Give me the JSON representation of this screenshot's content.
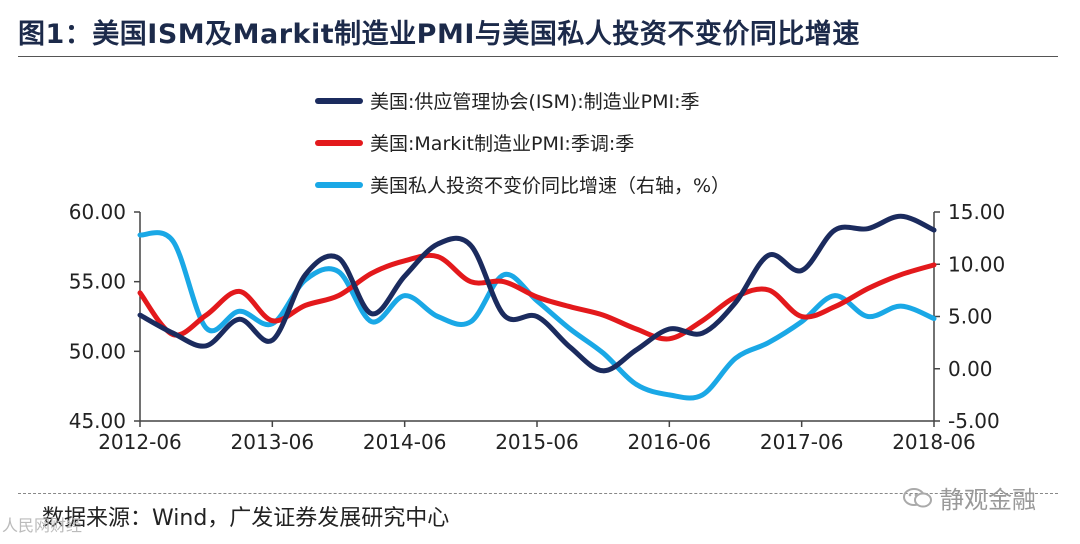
{
  "header": {
    "title": "图1：美国ISM及Markit制造业PMI与美国私人投资不变价同比增速"
  },
  "footer": {
    "source": "数据来源：Wind，广发证券发展研究中心",
    "watermark_right": "静观金融",
    "watermark_left": "人民网财经"
  },
  "chart_data": {
    "type": "line",
    "x": [
      "2012-06",
      "2012-09",
      "2012-12",
      "2013-03",
      "2013-06",
      "2013-09",
      "2013-12",
      "2014-03",
      "2014-06",
      "2014-09",
      "2014-12",
      "2015-03",
      "2015-06",
      "2015-09",
      "2015-12",
      "2016-03",
      "2016-06",
      "2016-09",
      "2016-12",
      "2017-03",
      "2017-06",
      "2017-09",
      "2017-12",
      "2018-03",
      "2018-06"
    ],
    "x_ticks": [
      "2012-06",
      "2013-06",
      "2014-06",
      "2015-06",
      "2016-06",
      "2017-06",
      "2018-06"
    ],
    "series": [
      {
        "name": "美国:供应管理协会(ISM):制造业PMI:季",
        "axis": "left",
        "color": "#1b2b5e",
        "values": [
          52.6,
          51.3,
          50.4,
          52.3,
          50.8,
          55.5,
          56.7,
          52.7,
          55.4,
          57.7,
          57.6,
          52.6,
          52.5,
          50.3,
          48.6,
          50.1,
          51.6,
          51.3,
          53.5,
          56.9,
          55.8,
          58.7,
          58.8,
          59.7,
          58.7
        ]
      },
      {
        "name": "美国:Markit制造业PMI:季调:季",
        "axis": "left",
        "color": "#e3191c",
        "values": [
          54.2,
          51.2,
          52.6,
          54.3,
          52.2,
          53.3,
          54.0,
          55.6,
          56.5,
          56.8,
          55.0,
          55.0,
          53.9,
          53.2,
          52.6,
          51.6,
          50.9,
          52.2,
          53.9,
          54.4,
          52.5,
          53.2,
          54.5,
          55.5,
          56.2
        ]
      },
      {
        "name": "美国私人投资不变价同比增速（右轴，%）",
        "axis": "right",
        "color": "#1aa8e6",
        "values": [
          12.8,
          12.2,
          3.9,
          5.5,
          4.3,
          8.5,
          9.3,
          4.5,
          7.0,
          5.0,
          4.5,
          9.0,
          6.5,
          3.8,
          1.5,
          -1.5,
          -2.5,
          -2.5,
          1.0,
          2.5,
          4.5,
          7.0,
          5.0,
          6.0,
          4.8
        ]
      }
    ],
    "y_left": {
      "ticks": [
        "60.00",
        "55.00",
        "50.00",
        "45.00"
      ],
      "ylim": [
        45,
        60
      ]
    },
    "y_right": {
      "ticks": [
        "15.00",
        "10.00",
        "5.00",
        "0.00",
        "-5.00"
      ],
      "ylim": [
        -5,
        15
      ]
    }
  }
}
